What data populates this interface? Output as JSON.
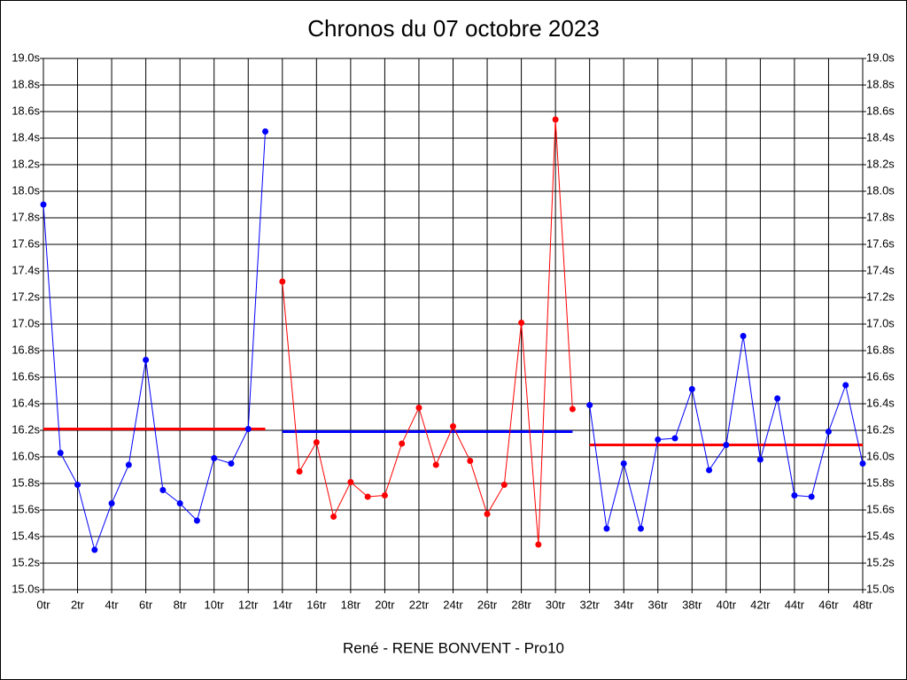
{
  "chart_data": {
    "type": "line",
    "title": "Chronos du 07 octobre 2023",
    "xlabel": "René - RENE BONVENT - Pro10",
    "xlim": [
      0,
      48
    ],
    "ylim": [
      15.0,
      19.0
    ],
    "grid": true,
    "xticks": [
      {
        "value": 0,
        "label": "0tr"
      },
      {
        "value": 2,
        "label": "2tr"
      },
      {
        "value": 4,
        "label": "4tr"
      },
      {
        "value": 6,
        "label": "6tr"
      },
      {
        "value": 8,
        "label": "8tr"
      },
      {
        "value": 10,
        "label": "10tr"
      },
      {
        "value": 12,
        "label": "12tr"
      },
      {
        "value": 14,
        "label": "14tr"
      },
      {
        "value": 16,
        "label": "16tr"
      },
      {
        "value": 18,
        "label": "18tr"
      },
      {
        "value": 20,
        "label": "20tr"
      },
      {
        "value": 22,
        "label": "22tr"
      },
      {
        "value": 24,
        "label": "24tr"
      },
      {
        "value": 26,
        "label": "26tr"
      },
      {
        "value": 28,
        "label": "28tr"
      },
      {
        "value": 30,
        "label": "30tr"
      },
      {
        "value": 32,
        "label": "32tr"
      },
      {
        "value": 34,
        "label": "34tr"
      },
      {
        "value": 36,
        "label": "36tr"
      },
      {
        "value": 38,
        "label": "38tr"
      },
      {
        "value": 40,
        "label": "40tr"
      },
      {
        "value": 42,
        "label": "42tr"
      },
      {
        "value": 44,
        "label": "44tr"
      },
      {
        "value": 46,
        "label": "46tr"
      },
      {
        "value": 48,
        "label": "48tr"
      }
    ],
    "yticks": [
      {
        "value": 15.0,
        "label": "15.0s"
      },
      {
        "value": 15.2,
        "label": "15.2s"
      },
      {
        "value": 15.4,
        "label": "15.4s"
      },
      {
        "value": 15.6,
        "label": "15.6s"
      },
      {
        "value": 15.8,
        "label": "15.8s"
      },
      {
        "value": 16.0,
        "label": "16.0s"
      },
      {
        "value": 16.2,
        "label": "16.2s"
      },
      {
        "value": 16.4,
        "label": "16.4s"
      },
      {
        "value": 16.6,
        "label": "16.6s"
      },
      {
        "value": 16.8,
        "label": "16.8s"
      },
      {
        "value": 17.0,
        "label": "17.0s"
      },
      {
        "value": 17.2,
        "label": "17.2s"
      },
      {
        "value": 17.4,
        "label": "17.4s"
      },
      {
        "value": 17.6,
        "label": "17.6s"
      },
      {
        "value": 17.8,
        "label": "17.8s"
      },
      {
        "value": 18.0,
        "label": "18.0s"
      },
      {
        "value": 18.2,
        "label": "18.2s"
      },
      {
        "value": 18.4,
        "label": "18.4s"
      },
      {
        "value": 18.6,
        "label": "18.6s"
      },
      {
        "value": 18.8,
        "label": "18.8s"
      },
      {
        "value": 19.0,
        "label": "19.0s"
      }
    ],
    "series": [
      {
        "color": "#0000ff",
        "x": [
          0,
          1,
          2,
          3,
          4,
          5,
          6,
          7,
          8,
          9,
          10,
          11,
          12,
          13
        ],
        "values": [
          17.9,
          16.03,
          15.79,
          15.3,
          15.65,
          15.94,
          16.73,
          15.75,
          15.65,
          15.52,
          15.99,
          15.95,
          16.21,
          18.45
        ]
      },
      {
        "color": "#ff0000",
        "x": [
          14,
          15,
          16,
          17,
          18,
          19,
          20,
          21,
          22,
          23,
          24,
          25,
          26,
          27,
          28,
          29,
          30,
          31
        ],
        "values": [
          17.32,
          15.89,
          16.11,
          15.55,
          15.81,
          15.7,
          15.71,
          16.1,
          16.37,
          15.94,
          16.23,
          15.97,
          15.57,
          15.79,
          17.01,
          15.34,
          18.54,
          16.36
        ]
      },
      {
        "color": "#0000ff",
        "x": [
          32,
          33,
          34,
          35,
          36,
          37,
          38,
          39,
          40,
          41,
          42,
          43,
          44,
          45,
          46,
          47,
          48
        ],
        "values": [
          16.39,
          15.46,
          15.95,
          15.46,
          16.13,
          16.14,
          16.51,
          15.9,
          16.09,
          16.91,
          15.98,
          16.44,
          15.71,
          15.7,
          16.19,
          16.54,
          15.95
        ]
      }
    ],
    "mean_lines": [
      {
        "color": "#ff0000",
        "x": [
          0,
          13
        ],
        "value": 16.21
      },
      {
        "color": "#0000ff",
        "x": [
          14,
          31
        ],
        "value": 16.19
      },
      {
        "color": "#ff0000",
        "x": [
          32,
          48
        ],
        "value": 16.09
      }
    ]
  }
}
